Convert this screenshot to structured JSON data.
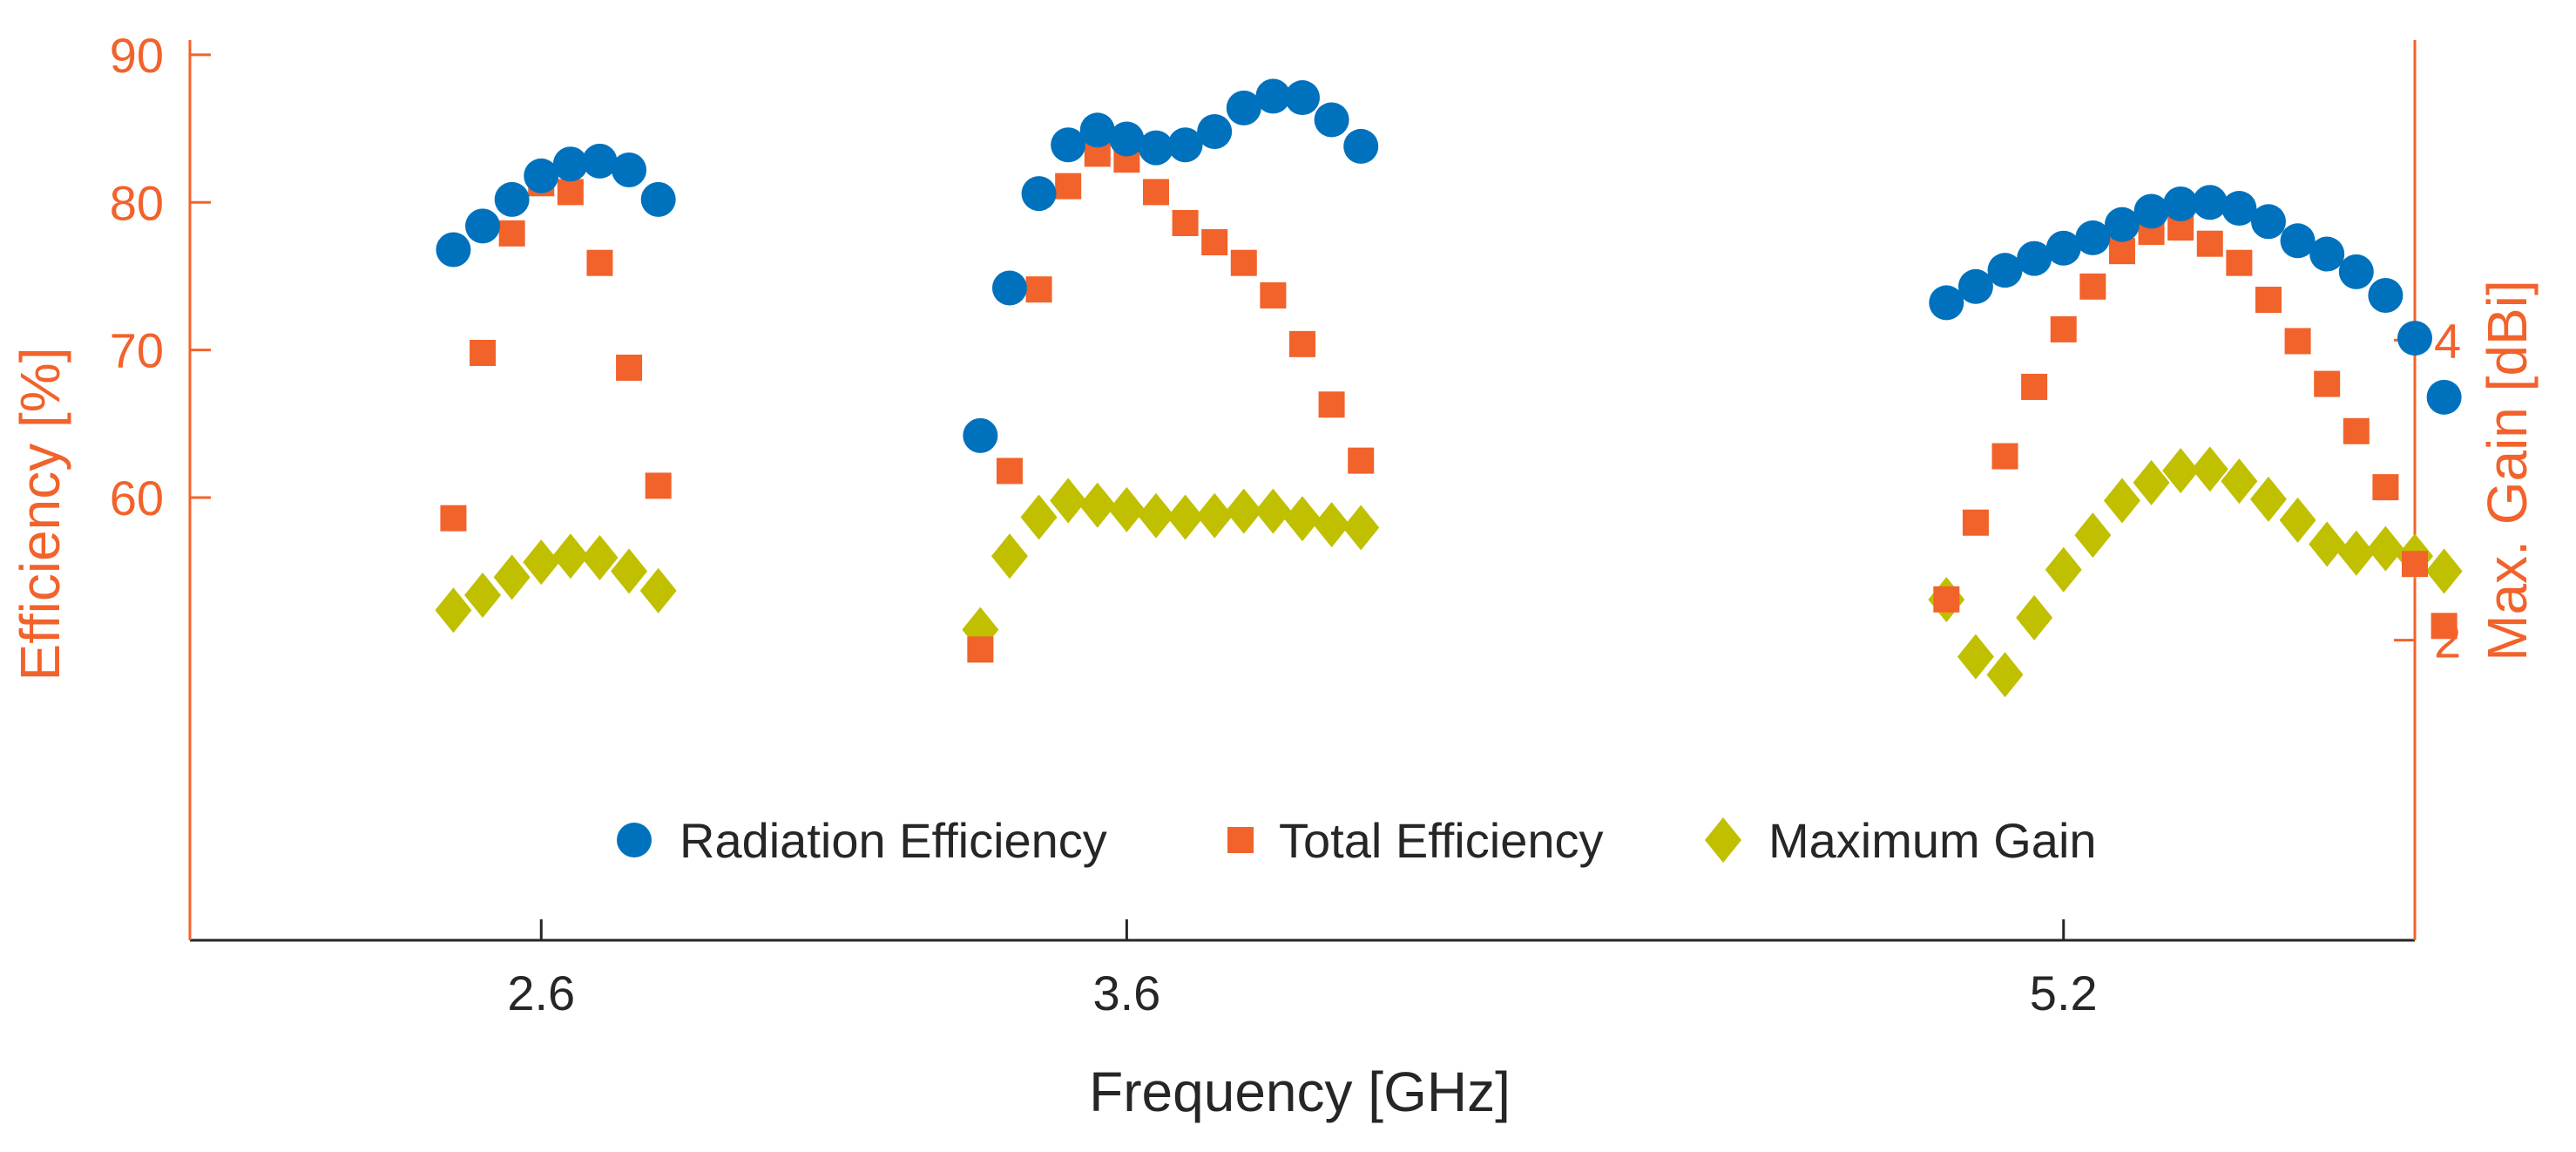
{
  "chart_data": {
    "type": "scatter",
    "title": "",
    "xlabel": "Frequency [GHz]",
    "x_ticks": [
      "2.6",
      "3.6",
      "5.2"
    ],
    "x_tick_values": [
      2.6,
      3.6,
      5.2
    ],
    "xlim": [
      2.0,
      5.8
    ],
    "left_axis": {
      "label": "Efficiency [%]",
      "ticks": [
        60,
        70,
        80,
        90
      ],
      "ylim": [
        30,
        91
      ],
      "color": "#f2622b"
    },
    "right_axis": {
      "label": "Max. Gain [dBi]",
      "ticks": [
        2,
        4
      ],
      "ylim": [
        0,
        6
      ],
      "color": "#f2622b"
    },
    "legend_placement": "bottom-center",
    "grid": false,
    "series": [
      {
        "name": "Radiation Efficiency",
        "axis": "left",
        "marker": "circle",
        "color": "#0072bd",
        "x": [
          2.45,
          2.5,
          2.55,
          2.6,
          2.65,
          2.7,
          2.75,
          2.8,
          3.35,
          3.4,
          3.45,
          3.5,
          3.55,
          3.6,
          3.65,
          3.7,
          3.75,
          3.8,
          3.85,
          3.9,
          3.95,
          4.0,
          5.0,
          5.05,
          5.1,
          5.15,
          5.2,
          5.25,
          5.3,
          5.35,
          5.4,
          5.45,
          5.5,
          5.55,
          5.6,
          5.65,
          5.7,
          5.75,
          5.8,
          5.85
        ],
        "y": [
          76.8,
          78.4,
          80.2,
          81.8,
          82.6,
          82.8,
          82.2,
          80.2,
          64.2,
          74.2,
          80.6,
          83.9,
          84.9,
          84.3,
          83.7,
          83.9,
          84.8,
          86.4,
          87.2,
          87.1,
          85.6,
          83.8,
          73.2,
          74.3,
          75.4,
          76.2,
          76.9,
          77.6,
          78.5,
          79.4,
          79.9,
          80.0,
          79.6,
          78.7,
          77.4,
          76.5,
          75.3,
          73.7,
          70.8,
          66.8
        ]
      },
      {
        "name": "Total Efficiency",
        "axis": "left",
        "marker": "square",
        "color": "#f2622b",
        "x": [
          2.45,
          2.5,
          2.55,
          2.6,
          2.65,
          2.7,
          2.75,
          2.8,
          3.35,
          3.4,
          3.45,
          3.5,
          3.55,
          3.6,
          3.65,
          3.7,
          3.75,
          3.8,
          3.85,
          3.9,
          3.95,
          4.0,
          5.0,
          5.05,
          5.1,
          5.15,
          5.2,
          5.25,
          5.3,
          5.35,
          5.4,
          5.45,
          5.5,
          5.55,
          5.6,
          5.65,
          5.7,
          5.75,
          5.8,
          5.85
        ],
        "y": [
          58.6,
          69.8,
          77.9,
          81.3,
          80.7,
          75.9,
          68.8,
          60.8,
          49.7,
          61.8,
          74.1,
          81.1,
          83.3,
          82.9,
          80.7,
          78.6,
          77.3,
          75.9,
          73.7,
          70.4,
          66.3,
          62.5,
          53.1,
          58.3,
          62.8,
          67.5,
          71.4,
          74.3,
          76.7,
          78.0,
          78.3,
          77.2,
          75.9,
          73.4,
          70.6,
          67.7,
          64.5,
          60.7,
          55.5,
          51.3
        ]
      },
      {
        "name": "Maximum Gain",
        "axis": "right",
        "marker": "diamond",
        "color": "#c0c000",
        "x": [
          2.45,
          2.5,
          2.55,
          2.6,
          2.65,
          2.7,
          2.75,
          2.8,
          3.35,
          3.4,
          3.45,
          3.5,
          3.55,
          3.6,
          3.65,
          3.7,
          3.75,
          3.8,
          3.85,
          3.9,
          3.95,
          4.0,
          5.0,
          5.05,
          5.1,
          5.15,
          5.2,
          5.25,
          5.3,
          5.35,
          5.4,
          5.45,
          5.5,
          5.55,
          5.6,
          5.65,
          5.7,
          5.75,
          5.8,
          5.85
        ],
        "y": [
          2.2,
          2.3,
          2.42,
          2.52,
          2.56,
          2.55,
          2.46,
          2.33,
          2.07,
          2.56,
          2.82,
          2.93,
          2.9,
          2.87,
          2.83,
          2.82,
          2.83,
          2.86,
          2.86,
          2.81,
          2.77,
          2.75,
          2.27,
          1.89,
          1.77,
          2.15,
          2.47,
          2.7,
          2.93,
          3.05,
          3.13,
          3.14,
          3.06,
          2.94,
          2.8,
          2.64,
          2.58,
          2.61,
          2.56,
          2.46
        ]
      }
    ]
  }
}
